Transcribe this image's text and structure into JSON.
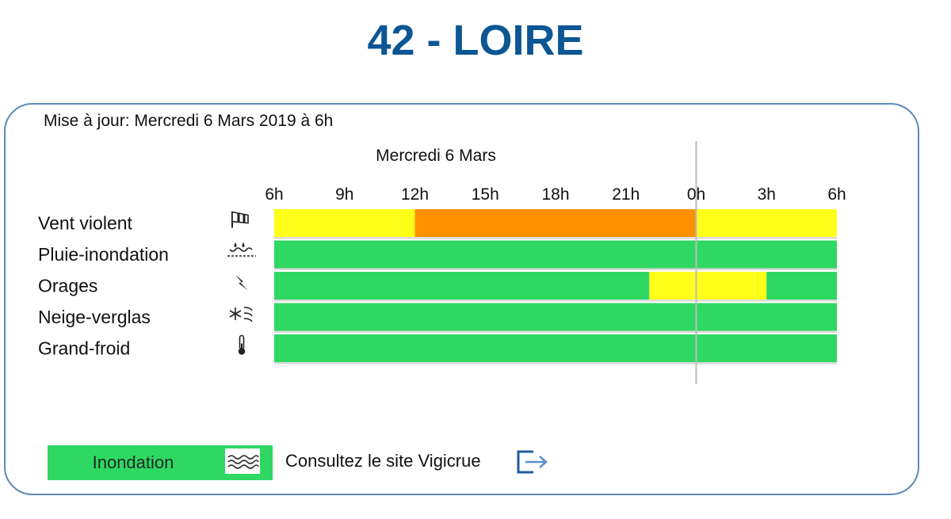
{
  "title": "42 - LOIRE",
  "update_text": "Mise à jour: Mercredi 6 Mars 2019 à 6h",
  "day_label": "Mercredi 6 Mars",
  "colors": {
    "green": "#2fd862",
    "yellow": "#ffff1a",
    "orange": "#ff9100",
    "title": "#0b5694"
  },
  "chart_data": {
    "type": "bar",
    "x_ticks": [
      "6h",
      "9h",
      "12h",
      "15h",
      "18h",
      "21h",
      "0h",
      "3h",
      "6h"
    ],
    "x_range_hours": [
      0,
      24
    ],
    "rows": [
      {
        "label": "Vent violent",
        "icon": "windsock-icon",
        "segments": [
          {
            "start": 0,
            "end": 6,
            "level": "yellow"
          },
          {
            "start": 6,
            "end": 18,
            "level": "orange"
          },
          {
            "start": 18,
            "end": 24,
            "level": "yellow"
          }
        ]
      },
      {
        "label": "Pluie-inondation",
        "icon": "rain-flood-icon",
        "segments": [
          {
            "start": 0,
            "end": 24,
            "level": "green"
          }
        ]
      },
      {
        "label": "Orages",
        "icon": "lightning-icon",
        "segments": [
          {
            "start": 0,
            "end": 16,
            "level": "green"
          },
          {
            "start": 16,
            "end": 21,
            "level": "yellow"
          },
          {
            "start": 21,
            "end": 24,
            "level": "green"
          }
        ]
      },
      {
        "label": "Neige-verglas",
        "icon": "snow-ice-icon",
        "segments": [
          {
            "start": 0,
            "end": 24,
            "level": "green"
          }
        ]
      },
      {
        "label": "Grand-froid",
        "icon": "thermometer-icon",
        "segments": [
          {
            "start": 0,
            "end": 24,
            "level": "green"
          }
        ]
      }
    ]
  },
  "legend": {
    "label": "Inondation",
    "icon": "flood-waves-icon"
  },
  "vigicrue": {
    "text": "Consultez le site Vigicrue",
    "icon": "external-link-icon"
  }
}
